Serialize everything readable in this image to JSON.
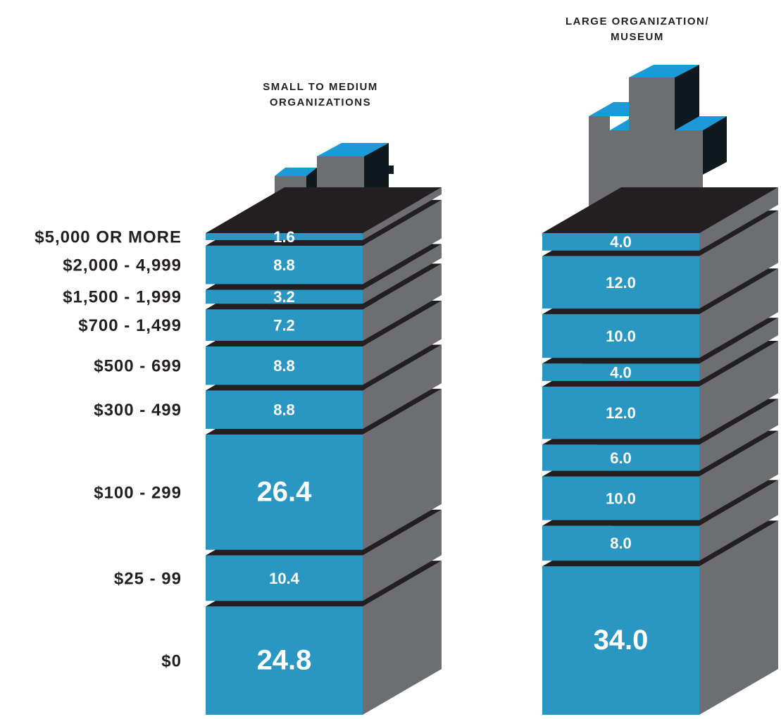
{
  "chart_data": {
    "type": "stacked",
    "categories": [
      "$0",
      "$25 - 99",
      "$100 - 299",
      "$300 - 499",
      "$500 - 699",
      "$700 - 1,499",
      "$1,500 - 1,999",
      "$2,000 - 4,999",
      "$5,000 OR MORE"
    ],
    "series": [
      {
        "name": "SMALL TO MEDIUM\nORGANIZATIONS",
        "color": "#2a97c2",
        "values": [
          24.8,
          10.4,
          26.4,
          8.8,
          8.8,
          7.2,
          3.2,
          8.8,
          1.6
        ]
      },
      {
        "name": "LARGE ORGANIZATION/\nMUSEUM",
        "color": "#2a97c2",
        "values": [
          34,
          8,
          10,
          6,
          12,
          4,
          10,
          12,
          4
        ],
        "value_labels": [
          "34.0",
          "8.0",
          "10.0",
          "6.0",
          "12.0",
          "4.0",
          "10.0",
          "12.0",
          "4.0"
        ]
      }
    ],
    "face_colors": {
      "top": "#231f20",
      "side": "#6d6e71"
    }
  }
}
